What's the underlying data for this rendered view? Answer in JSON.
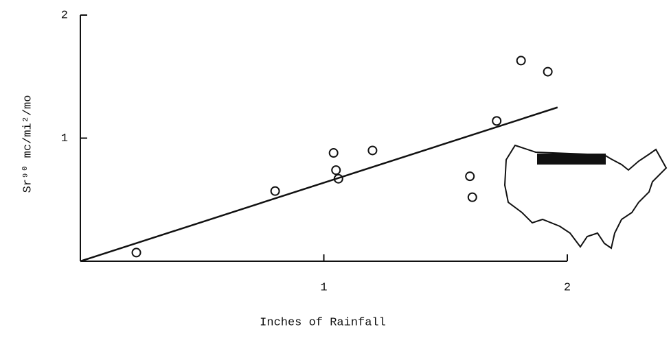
{
  "chart_data": {
    "type": "scatter",
    "xlabel": "Inches of Rainfall",
    "ylabel": "Sr⁹⁰ mc/mi²/mo",
    "x": [
      0.23,
      0.8,
      1.04,
      1.05,
      1.06,
      1.2,
      1.6,
      1.61,
      1.71,
      1.81,
      1.92
    ],
    "values": [
      0.07,
      0.57,
      0.88,
      0.74,
      0.67,
      0.9,
      0.69,
      0.52,
      1.14,
      1.63,
      1.54
    ],
    "trend_line": {
      "x": [
        0,
        1.96
      ],
      "y": [
        0,
        1.25
      ]
    },
    "xlim": [
      0,
      2
    ],
    "ylim": [
      0,
      2
    ],
    "xticks": [
      1,
      2
    ],
    "yticks": [
      1,
      2
    ],
    "color": "#111111"
  }
}
